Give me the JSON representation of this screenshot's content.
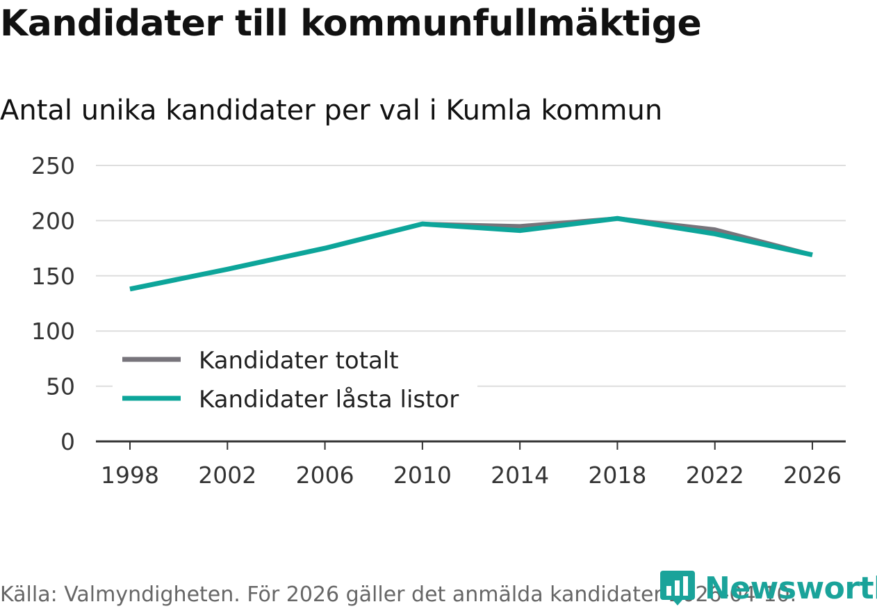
{
  "title": "Kandidater till kommunfullmäktige",
  "subtitle": "Antal unika kandidater per val i Kumla kommun",
  "source": "Källa: Valmyndigheten. För 2026 gäller det anmälda kandidater 2026-04-10.",
  "logo": {
    "text": "Newsworthy",
    "icon": "bar-chart-logo-icon"
  },
  "colors": {
    "totalt": "#77747b",
    "lasta": "#0da59a",
    "grid": "#dddddd",
    "axis": "#333333",
    "brand": "#1aa39a"
  },
  "chart_data": {
    "type": "line",
    "title": "Kandidater till kommunfullmäktige",
    "subtitle": "Antal unika kandidater per val i Kumla kommun",
    "x": [
      1998,
      2002,
      2006,
      2010,
      2014,
      2018,
      2022,
      2026
    ],
    "x_tick_labels": [
      "1998",
      "2002",
      "2006",
      "2010",
      "2014",
      "2018",
      "2022",
      "2026"
    ],
    "y_ticks": [
      0,
      50,
      100,
      150,
      200,
      250
    ],
    "y_tick_labels": [
      "0",
      "50",
      "100",
      "150",
      "200",
      "250"
    ],
    "ylim": [
      0,
      250
    ],
    "grid": true,
    "legend_position": "lower-left",
    "series": [
      {
        "name": "Kandidater totalt",
        "color": "#77747b",
        "values": [
          138,
          156,
          175,
          197,
          195,
          202,
          192,
          169
        ]
      },
      {
        "name": "Kandidater låsta listor",
        "color": "#0da59a",
        "values": [
          138,
          156,
          175,
          197,
          191,
          202,
          188,
          169
        ]
      }
    ]
  }
}
